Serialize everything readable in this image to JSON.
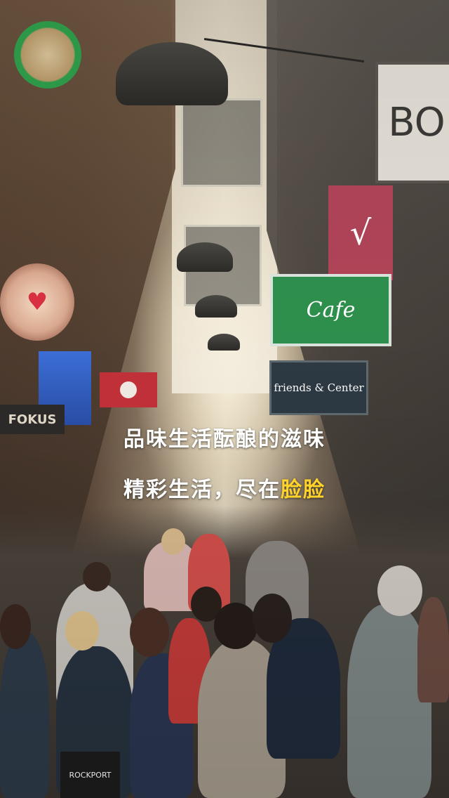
{
  "splash": {
    "tagline_line1": "品味生活酝酿的滋味",
    "tagline_line2_prefix": "精彩生活，尽在",
    "tagline_line2_brand": "脸脸",
    "brand_color": "#ffd32a",
    "text_color": "#ffffff"
  },
  "background_signs": {
    "sign_bo": "BO",
    "sign_cafe": "Cafe",
    "sign_friends": "friends & Center",
    "sign_fokus": "FOKUS",
    "sign_rockport": "ROCKPORT"
  },
  "icons": {
    "green_sign": "round-sign-icon",
    "heart_sign": "heart-sign-icon"
  }
}
